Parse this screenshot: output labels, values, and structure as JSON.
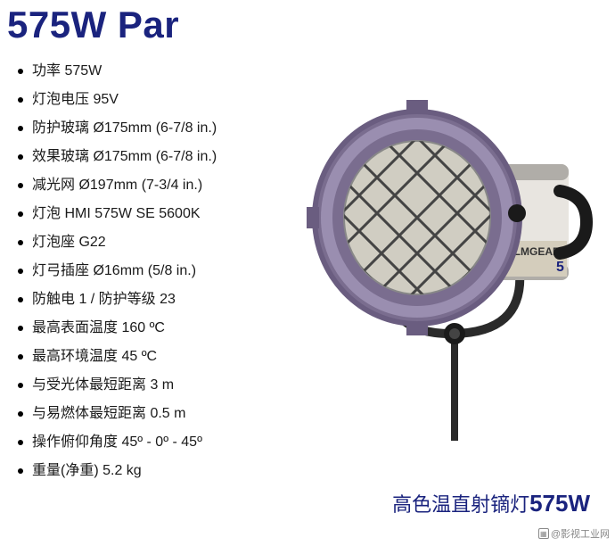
{
  "title": "575W Par",
  "specs": [
    "功率 575W",
    "灯泡电压 95V",
    "防护玻璃 Ø175mm (6-7/8 in.)",
    "效果玻璃 Ø175mm (6-7/8 in.)",
    "减光网 Ø197mm (7-3/4 in.)",
    "灯泡 HMI 575W SE 5600K",
    "灯泡座 G22",
    "灯弓插座 Ø16mm (5/8 in.)",
    "防触电 1 / 防护等级 23",
    "最高表面温度 160 ºC",
    "最高环境温度 45 ºC",
    "与受光体最短距离 3 m",
    "与易燃体最短距离 0.5 m",
    "操作俯仰角度 45º - 0º - 45º",
    "重量(净重) 5.2 kg"
  ],
  "subtitle_prefix": "高色温直射镝灯",
  "subtitle_bold": "575W",
  "watermark": "@影视工业网",
  "lamp_svg": {
    "body_color": "#7a6d8f",
    "body_light_color": "#9a8eb0",
    "housing_color": "#e8e5e0",
    "housing_shadow": "#b0ada8",
    "grid_color": "#444444",
    "lens_color": "#d0cdc2",
    "handle_color": "#1a1a1a",
    "stand_color": "#2a2a2a",
    "label_bg": "#d4cdbc",
    "brand_text": "FILMGEAR",
    "brand_sub": "5"
  }
}
